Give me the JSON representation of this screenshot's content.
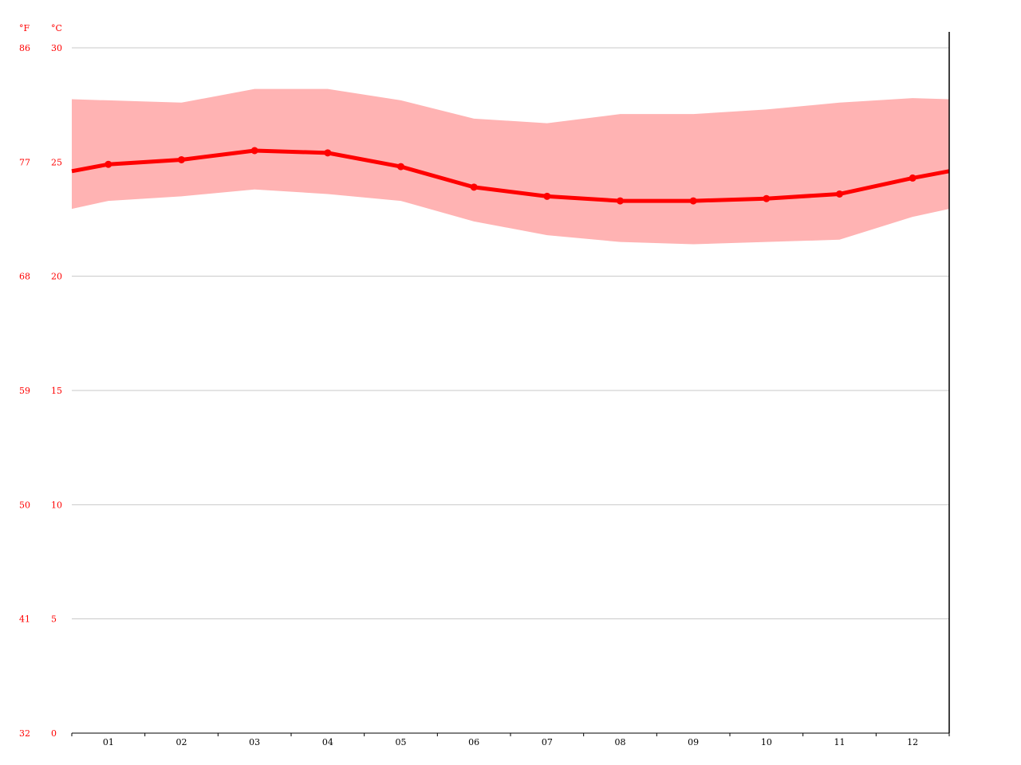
{
  "chart_data": {
    "type": "line",
    "title": "",
    "xlabel": "",
    "ylabel": "",
    "units": {
      "fahrenheit": "°F",
      "celsius": "°C"
    },
    "categories": [
      "01",
      "02",
      "03",
      "04",
      "05",
      "06",
      "07",
      "08",
      "09",
      "10",
      "11",
      "12"
    ],
    "ylim": [
      0,
      30
    ],
    "y_ticks_celsius": [
      "0",
      "5",
      "10",
      "15",
      "20",
      "25",
      "30"
    ],
    "y_ticks_fahrenheit": [
      "32",
      "41",
      "50",
      "59",
      "68",
      "77",
      "86"
    ],
    "grid": true,
    "series": [
      {
        "values": [
          24.9,
          25.1,
          25.5,
          25.4,
          24.8,
          23.9,
          23.5,
          23.3,
          23.3,
          23.4,
          23.6,
          24.3
        ],
        "color": "#ff0000"
      }
    ],
    "band": {
      "upper": [
        27.7,
        27.6,
        28.2,
        28.2,
        27.7,
        26.9,
        26.7,
        27.1,
        27.1,
        27.3,
        27.6,
        27.8
      ],
      "lower": [
        23.3,
        23.5,
        23.8,
        23.6,
        23.3,
        22.4,
        21.8,
        21.5,
        21.4,
        21.5,
        21.6,
        22.6
      ],
      "color": "#ffb3b3"
    },
    "colors": {
      "axis_label": "#ff0000",
      "grid": "#c8c8c8",
      "axis": "#000000"
    }
  }
}
